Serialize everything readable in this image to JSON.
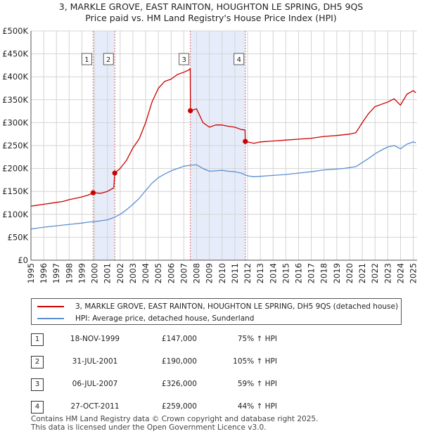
{
  "header": {
    "title_line1": "3, MARKLE GROVE, EAST RAINTON, HOUGHTON LE SPRING, DH5 9QS",
    "title_line2": "Price paid vs. HM Land Registry's House Price Index (HPI)"
  },
  "colors": {
    "property": "#cc0000",
    "hpi": "#5b8fd0",
    "shade": "#e6ecfa",
    "marker_line": "#e06060"
  },
  "chart_data": {
    "type": "line",
    "title": "Price paid vs. HM Land Registry's House Price Index (HPI)",
    "xlabel": "",
    "ylabel": "",
    "x_range": [
      1995.0,
      2025.3
    ],
    "ylim": [
      0,
      500000
    ],
    "grid": true,
    "y_ticks": [
      0,
      50000,
      100000,
      150000,
      200000,
      250000,
      300000,
      350000,
      400000,
      450000,
      500000
    ],
    "y_tick_labels": [
      "£0",
      "£50K",
      "£100K",
      "£150K",
      "£200K",
      "£250K",
      "£300K",
      "£350K",
      "£400K",
      "£450K",
      "£500K"
    ],
    "x_ticks": [
      1995,
      1996,
      1997,
      1998,
      1999,
      2000,
      2001,
      2002,
      2003,
      2004,
      2005,
      2006,
      2007,
      2008,
      2009,
      2010,
      2011,
      2012,
      2013,
      2014,
      2015,
      2016,
      2017,
      2018,
      2019,
      2020,
      2021,
      2022,
      2023,
      2024,
      2025
    ],
    "x_tick_labels": [
      "1995",
      "1996",
      "1997",
      "1998",
      "1999",
      "2000",
      "2001",
      "2002",
      "2003",
      "2004",
      "2005",
      "2006",
      "2007",
      "2008",
      "2009",
      "2010",
      "2011",
      "2012",
      "2013",
      "2014",
      "2015",
      "2016",
      "2017",
      "2018",
      "2019",
      "2020",
      "2021",
      "2022",
      "2023",
      "2024",
      "2025"
    ],
    "shaded_ranges": [
      [
        1999.88,
        2001.58
      ],
      [
        2007.51,
        2011.82
      ]
    ],
    "series": [
      {
        "name": "3, MARKLE GROVE, EAST RAINTON, HOUGHTON LE SPRING, DH5 9QS (detached house)",
        "color": "#cc0000",
        "x": [
          1995.0,
          1995.5,
          1996.0,
          1996.5,
          1997.0,
          1997.5,
          1998.0,
          1998.5,
          1999.0,
          1999.5,
          1999.88,
          2000.5,
          2001.0,
          2001.5,
          2001.58,
          2002.0,
          2002.5,
          2003.0,
          2003.5,
          2004.0,
          2004.5,
          2005.0,
          2005.5,
          2006.0,
          2006.5,
          2007.0,
          2007.4,
          2007.5,
          2007.51,
          2008.0,
          2008.5,
          2009.0,
          2009.5,
          2010.0,
          2010.5,
          2011.0,
          2011.5,
          2011.8,
          2011.82,
          2012.5,
          2013.0,
          2014.0,
          2015.0,
          2016.0,
          2017.0,
          2018.0,
          2019.0,
          2020.0,
          2020.5,
          2021.0,
          2021.5,
          2022.0,
          2022.5,
          2023.0,
          2023.5,
          2024.0,
          2024.5,
          2025.0,
          2025.2
        ],
        "values": [
          118000,
          120000,
          122000,
          124000,
          126000,
          128000,
          132000,
          135000,
          138000,
          142000,
          147000,
          146000,
          150000,
          158000,
          190000,
          200000,
          218000,
          245000,
          265000,
          300000,
          345000,
          375000,
          390000,
          395000,
          405000,
          410000,
          415000,
          418000,
          326000,
          330000,
          300000,
          290000,
          295000,
          295000,
          292000,
          290000,
          285000,
          284000,
          259000,
          255000,
          258000,
          260000,
          262000,
          264000,
          266000,
          270000,
          272000,
          275000,
          278000,
          300000,
          320000,
          335000,
          340000,
          345000,
          352000,
          338000,
          362000,
          370000,
          365000
        ]
      },
      {
        "name": "HPI: Average price, detached house, Sunderland",
        "color": "#5b8fd0",
        "x": [
          1995.0,
          1995.5,
          1996.0,
          1997.0,
          1998.0,
          1999.0,
          1999.5,
          2000.0,
          2000.5,
          2001.0,
          2001.5,
          2002.0,
          2002.5,
          2003.0,
          2003.5,
          2004.0,
          2004.5,
          2005.0,
          2005.5,
          2006.0,
          2006.5,
          2007.0,
          2007.5,
          2008.0,
          2008.5,
          2009.0,
          2009.5,
          2010.0,
          2010.5,
          2011.0,
          2011.5,
          2012.0,
          2012.5,
          2013.0,
          2014.0,
          2015.0,
          2016.0,
          2017.0,
          2018.0,
          2019.0,
          2019.5,
          2020.0,
          2020.5,
          2021.0,
          2021.5,
          2022.0,
          2022.5,
          2023.0,
          2023.5,
          2024.0,
          2024.5,
          2025.0,
          2025.2
        ],
        "values": [
          68000,
          70000,
          72000,
          75000,
          78000,
          81000,
          83000,
          84000,
          86000,
          88000,
          93000,
          100000,
          110000,
          122000,
          135000,
          152000,
          168000,
          180000,
          188000,
          195000,
          200000,
          205000,
          207000,
          208000,
          200000,
          194000,
          195000,
          196000,
          194000,
          193000,
          190000,
          184000,
          182000,
          183000,
          185000,
          187000,
          190000,
          193000,
          197000,
          199000,
          200000,
          202000,
          204000,
          213000,
          222000,
          232000,
          240000,
          247000,
          250000,
          243000,
          253000,
          258000,
          256000
        ]
      }
    ],
    "sale_markers": [
      {
        "label": "1",
        "x": 1999.88,
        "value": 147000
      },
      {
        "label": "2",
        "x": 2001.58,
        "value": 190000
      },
      {
        "label": "3",
        "x": 2007.51,
        "value": 326000
      },
      {
        "label": "4",
        "x": 2011.82,
        "value": 259000
      }
    ]
  },
  "legend": {
    "property_label": "3, MARKLE GROVE, EAST RAINTON, HOUGHTON LE SPRING, DH5 9QS (detached house)",
    "hpi_label": "HPI: Average price, detached house, Sunderland"
  },
  "sales": [
    {
      "num": "1",
      "date": "18-NOV-1999",
      "price": "£147,000",
      "hpi": "75% ↑ HPI"
    },
    {
      "num": "2",
      "date": "31-JUL-2001",
      "price": "£190,000",
      "hpi": "105% ↑ HPI"
    },
    {
      "num": "3",
      "date": "06-JUL-2007",
      "price": "£326,000",
      "hpi": "59% ↑ HPI"
    },
    {
      "num": "4",
      "date": "27-OCT-2011",
      "price": "£259,000",
      "hpi": "44% ↑ HPI"
    }
  ],
  "footer": {
    "line1": "Contains HM Land Registry data © Crown copyright and database right 2025.",
    "line2": "This data is licensed under the Open Government Licence v3.0."
  }
}
